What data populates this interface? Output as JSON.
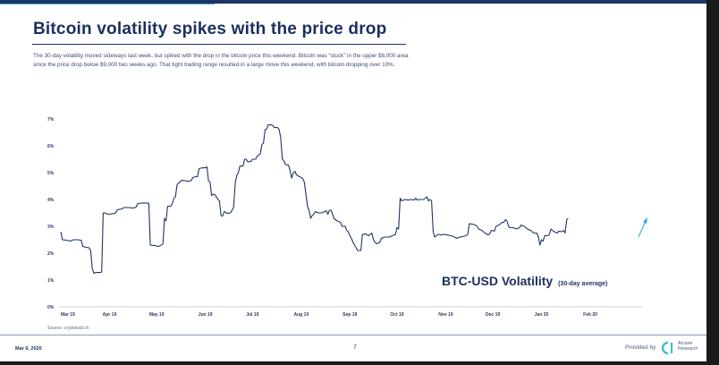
{
  "slide": {
    "title": "Bitcoin volatility spikes with the price drop",
    "description": "The 30-day volatility moved sideways last week, but spiked with the drop in the bitcoin price this weekend. Bitcoin was “stuck” in the upper $8,000 area since the price drop below $9,000 two weeks ago. That tight trading range resulted in a large move this weekend, with bitcoin dropping over 10%.",
    "source": "Source: cryptowat.ch",
    "footer": {
      "date": "Mar 9, 2020",
      "page": "7",
      "provided_by": "Provided by",
      "brand_line1": "Arcane",
      "brand_line2": "Research"
    },
    "colors": {
      "brand_navy": "#1b2f5e",
      "line": "#1d3466",
      "accent_arrow": "#2a9df4",
      "logo": "#3fc1c9"
    }
  },
  "chart_data": {
    "type": "line",
    "title": "BTC-USD Volatility",
    "subtitle": "(30-day average)",
    "xlabel": "",
    "ylabel": "",
    "ylim": [
      0,
      7
    ],
    "yticks": [
      "0%",
      "1%",
      "2%",
      "3%",
      "4%",
      "5%",
      "6%",
      "7%"
    ],
    "xticks": [
      "Mar 19",
      "Apr 19",
      "May 19",
      "Jun 19",
      "Jul 19",
      "Aug 19",
      "Sep 19",
      "Oct 19",
      "Nov 19",
      "Dec 19",
      "Jan 20",
      "Feb 20"
    ],
    "x_unit": "days since Mar 1 2019",
    "grid": false,
    "legend": "none",
    "annotation": "upward arrow at latest value",
    "series": [
      {
        "name": "BTC-USD 30-day volatility (%)",
        "points": [
          [
            0,
            2.8
          ],
          [
            1,
            2.5
          ],
          [
            4,
            2.48
          ],
          [
            6,
            2.45
          ],
          [
            8,
            2.5
          ],
          [
            11,
            2.5
          ],
          [
            13,
            2.48
          ],
          [
            14,
            2.25
          ],
          [
            16,
            2.22
          ],
          [
            18,
            2.2
          ],
          [
            19,
            2.1
          ],
          [
            20,
            1.45
          ],
          [
            21,
            1.25
          ],
          [
            22,
            1.28
          ],
          [
            25,
            1.28
          ],
          [
            26,
            1.3
          ],
          [
            27,
            3.5
          ],
          [
            28,
            3.5
          ],
          [
            30,
            3.45
          ],
          [
            33,
            3.47
          ],
          [
            35,
            3.5
          ],
          [
            36,
            3.62
          ],
          [
            39,
            3.65
          ],
          [
            40,
            3.7
          ],
          [
            43,
            3.7
          ],
          [
            46,
            3.68
          ],
          [
            48,
            3.72
          ],
          [
            49,
            3.85
          ],
          [
            52,
            3.87
          ],
          [
            55,
            3.87
          ],
          [
            56,
            3.85
          ],
          [
            57,
            2.3
          ],
          [
            60,
            2.28
          ],
          [
            62,
            2.25
          ],
          [
            64,
            2.3
          ],
          [
            65,
            2.35
          ],
          [
            66,
            3.3
          ],
          [
            67,
            3.2
          ],
          [
            68,
            3.75
          ],
          [
            70,
            3.75
          ],
          [
            71,
            3.85
          ],
          [
            72,
            4.05
          ],
          [
            73,
            4.1
          ],
          [
            74,
            4.55
          ],
          [
            75,
            4.62
          ],
          [
            77,
            4.72
          ],
          [
            79,
            4.7
          ],
          [
            81,
            4.68
          ],
          [
            83,
            4.7
          ],
          [
            84,
            4.82
          ],
          [
            86,
            4.85
          ],
          [
            87,
            4.85
          ],
          [
            88,
            5.15
          ],
          [
            90,
            5.18
          ],
          [
            92,
            5.18
          ],
          [
            93,
            5.22
          ],
          [
            94,
            4.7
          ],
          [
            95,
            4.65
          ],
          [
            96,
            4.15
          ],
          [
            97,
            4.2
          ],
          [
            98,
            4.18
          ],
          [
            99,
            4.1
          ],
          [
            100,
            4.0
          ],
          [
            101,
            3.95
          ],
          [
            102,
            3.4
          ],
          [
            103,
            3.38
          ],
          [
            104,
            3.55
          ],
          [
            106,
            3.48
          ],
          [
            108,
            3.5
          ],
          [
            110,
            3.7
          ],
          [
            111,
            4.6
          ],
          [
            112,
            4.9
          ],
          [
            113,
            5.0
          ],
          [
            114,
            5.25
          ],
          [
            116,
            5.25
          ],
          [
            117,
            5.5
          ],
          [
            118,
            5.5
          ],
          [
            119,
            5.4
          ],
          [
            121,
            5.42
          ],
          [
            122,
            5.5
          ],
          [
            124,
            5.5
          ],
          [
            125,
            5.62
          ],
          [
            127,
            5.7
          ],
          [
            128,
            6.05
          ],
          [
            129,
            6.1
          ],
          [
            130,
            6.6
          ],
          [
            131,
            6.62
          ],
          [
            132,
            6.78
          ],
          [
            134,
            6.78
          ],
          [
            135,
            6.75
          ],
          [
            136,
            6.68
          ],
          [
            138,
            6.68
          ],
          [
            139,
            6.6
          ],
          [
            140,
            6.3
          ],
          [
            141,
            5.5
          ],
          [
            142,
            5.45
          ],
          [
            143,
            5.3
          ],
          [
            145,
            5.28
          ],
          [
            146,
            5.05
          ],
          [
            147,
            4.8
          ],
          [
            148,
            5.0
          ],
          [
            149,
            5.05
          ],
          [
            150,
            4.92
          ],
          [
            151,
            4.88
          ],
          [
            152,
            4.85
          ],
          [
            153,
            4.82
          ],
          [
            154,
            4.78
          ],
          [
            155,
            4.65
          ],
          [
            156,
            4.2
          ],
          [
            157,
            3.75
          ],
          [
            158,
            3.6
          ],
          [
            159,
            3.3
          ],
          [
            160,
            3.4
          ],
          [
            161,
            3.45
          ],
          [
            162,
            3.55
          ],
          [
            164,
            3.5
          ],
          [
            166,
            3.5
          ],
          [
            168,
            3.55
          ],
          [
            169,
            3.58
          ],
          [
            170,
            3.45
          ],
          [
            171,
            3.6
          ],
          [
            172,
            3.6
          ],
          [
            173,
            3.45
          ],
          [
            174,
            3.28
          ],
          [
            176,
            3.2
          ],
          [
            178,
            3.15
          ],
          [
            179,
            3.0
          ],
          [
            181,
            3.0
          ],
          [
            182,
            2.85
          ],
          [
            183,
            2.8
          ],
          [
            184,
            2.65
          ],
          [
            185,
            2.55
          ],
          [
            186,
            2.4
          ],
          [
            187,
            2.3
          ],
          [
            189,
            2.1
          ],
          [
            191,
            2.1
          ],
          [
            192,
            2.7
          ],
          [
            194,
            2.72
          ],
          [
            196,
            2.65
          ],
          [
            198,
            2.75
          ],
          [
            199,
            2.5
          ],
          [
            200,
            2.4
          ],
          [
            201,
            2.35
          ],
          [
            203,
            2.4
          ],
          [
            204,
            2.55
          ],
          [
            206,
            2.6
          ],
          [
            209,
            2.6
          ],
          [
            211,
            2.65
          ],
          [
            213,
            2.7
          ],
          [
            214,
            2.95
          ],
          [
            215,
            2.9
          ],
          [
            216,
            4.05
          ],
          [
            217,
            3.95
          ],
          [
            219,
            4.0
          ],
          [
            221,
            3.98
          ],
          [
            223,
            4.0
          ],
          [
            225,
            3.98
          ],
          [
            226,
            4.05
          ],
          [
            227,
            3.98
          ],
          [
            229,
            4.0
          ],
          [
            231,
            4.0
          ],
          [
            232,
            4.05
          ],
          [
            233,
            4.1
          ],
          [
            234,
            3.95
          ],
          [
            235,
            4.0
          ],
          [
            236,
            3.95
          ],
          [
            237,
            2.8
          ],
          [
            238,
            2.6
          ],
          [
            240,
            2.7
          ],
          [
            242,
            2.68
          ],
          [
            244,
            2.7
          ],
          [
            246,
            2.68
          ],
          [
            248,
            2.65
          ],
          [
            250,
            2.62
          ],
          [
            252,
            2.55
          ],
          [
            254,
            2.6
          ],
          [
            256,
            2.62
          ],
          [
            258,
            2.65
          ],
          [
            259,
            2.7
          ],
          [
            260,
            3.1
          ],
          [
            262,
            3.08
          ],
          [
            264,
            3.05
          ],
          [
            265,
            3.0
          ],
          [
            266,
            2.9
          ],
          [
            268,
            2.85
          ],
          [
            270,
            2.75
          ],
          [
            272,
            2.68
          ],
          [
            273,
            2.72
          ],
          [
            274,
            2.85
          ],
          [
            276,
            2.82
          ],
          [
            277,
            3.0
          ],
          [
            279,
            3.05
          ],
          [
            281,
            3.15
          ],
          [
            282,
            3.15
          ],
          [
            283,
            3.25
          ],
          [
            284,
            3.2
          ],
          [
            285,
            3.0
          ],
          [
            286,
            2.95
          ],
          [
            288,
            2.95
          ],
          [
            290,
            2.9
          ],
          [
            292,
            2.95
          ],
          [
            293,
            3.05
          ],
          [
            295,
            3.0
          ],
          [
            296,
            2.95
          ],
          [
            297,
            2.9
          ],
          [
            299,
            2.85
          ],
          [
            300,
            2.8
          ],
          [
            301,
            2.75
          ],
          [
            303,
            2.75
          ],
          [
            304,
            2.6
          ],
          [
            305,
            2.3
          ],
          [
            306,
            2.5
          ],
          [
            307,
            2.45
          ],
          [
            308,
            2.65
          ],
          [
            310,
            2.65
          ],
          [
            311,
            2.7
          ],
          [
            312,
            2.9
          ],
          [
            314,
            2.8
          ],
          [
            316,
            2.75
          ],
          [
            317,
            2.82
          ],
          [
            319,
            2.8
          ],
          [
            320,
            2.85
          ],
          [
            321,
            2.75
          ],
          [
            322,
            3.25
          ],
          [
            323,
            3.3
          ]
        ]
      }
    ]
  }
}
